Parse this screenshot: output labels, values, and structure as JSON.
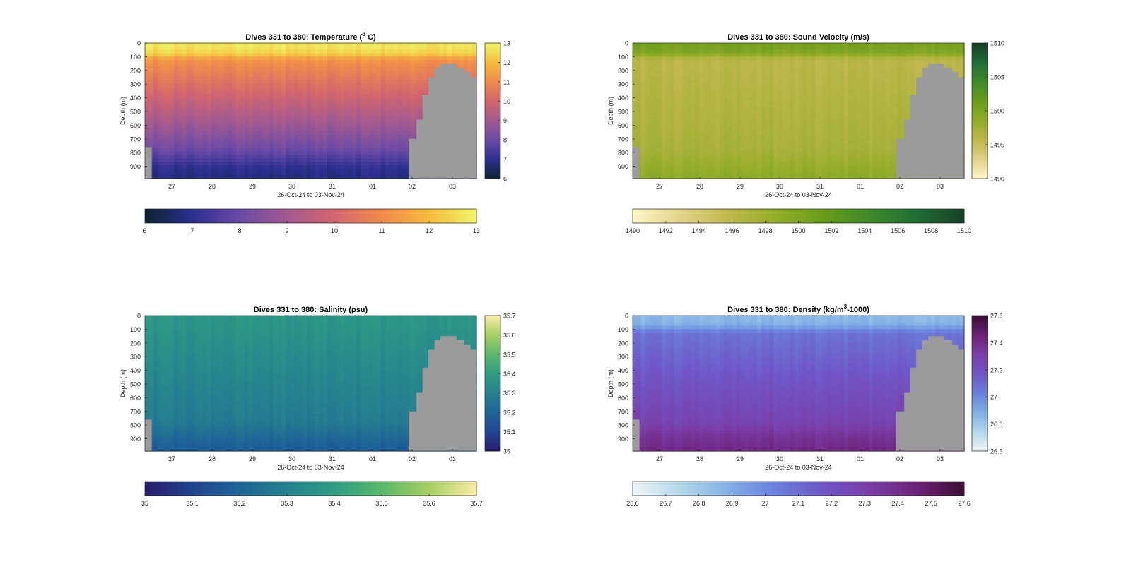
{
  "figure": {
    "background": "#ffffff",
    "mask_color": "#9b9b9b"
  },
  "chart_data": [
    {
      "type": "heatmap",
      "variable": "temperature",
      "title": "Dives 331 to 380: Temperature (",
      "title_sup": "o",
      "title_suffix": " C)",
      "xlabel": "26-Oct-24 to 03-Nov-24",
      "ylabel": "Depth (m)",
      "x_ticks": [
        "27",
        "28",
        "29",
        "30",
        "31",
        "01",
        "02",
        "03"
      ],
      "y_ticks": [
        0,
        100,
        200,
        300,
        400,
        500,
        600,
        700,
        800,
        900
      ],
      "ylim": [
        0,
        990
      ],
      "xlim_days": [
        26.4,
        34.7
      ],
      "colorbar_ticks": [
        "6",
        "7",
        "8",
        "9",
        "10",
        "11",
        "12",
        "13"
      ],
      "clim": [
        6,
        13
      ],
      "colormap": [
        "#0b2330",
        "#2c2f8f",
        "#6a4aa6",
        "#a25a90",
        "#d2666e",
        "#f08a4c",
        "#f6bb3e",
        "#eef56a"
      ],
      "profile": {
        "surface": 12.7,
        "thermocline_depth": 120,
        "top_mixed": 11.2,
        "deep": 7.4,
        "bottom": 6.8
      }
    },
    {
      "type": "heatmap",
      "variable": "sound_velocity",
      "title": "Dives 331 to 380: Sound Velocity (m/s)",
      "title_sup": "",
      "title_suffix": "",
      "xlabel": "26-Oct-24 to 03-Nov-24",
      "ylabel": "Depth (m)",
      "x_ticks": [
        "27",
        "28",
        "29",
        "30",
        "31",
        "01",
        "02",
        "03"
      ],
      "y_ticks": [
        0,
        100,
        200,
        300,
        400,
        500,
        600,
        700,
        800,
        900
      ],
      "ylim": [
        0,
        990
      ],
      "xlim_days": [
        26.4,
        34.7
      ],
      "colorbar_ticks": [
        "1490",
        "1492",
        "1494",
        "1496",
        "1498",
        "1500",
        "1502",
        "1504",
        "1506",
        "1508",
        "1510"
      ],
      "colorbar_ticks_side": [
        "1490",
        "1495",
        "1500",
        "1505",
        "1510"
      ],
      "clim": [
        1490,
        1510
      ],
      "colormap": [
        "#fdf7c6",
        "#e2d38b",
        "#c0b84e",
        "#95ad2a",
        "#6a9c1c",
        "#3f8a2a",
        "#1f6e35",
        "#173f28"
      ],
      "profile": {
        "surface": 1500.5,
        "thermocline_depth": 120,
        "top_mixed": 1496.0,
        "deep": 1497.6,
        "bottom": 1499.0
      }
    },
    {
      "type": "heatmap",
      "variable": "salinity",
      "title": "Dives 331 to 380: Salinity (psu)",
      "title_sup": "",
      "title_suffix": "",
      "xlabel": "26-Oct-24 to 03-Nov-24",
      "ylabel": "Depth (m)",
      "x_ticks": [
        "27",
        "28",
        "29",
        "30",
        "31",
        "01",
        "02",
        "03"
      ],
      "y_ticks": [
        0,
        100,
        200,
        300,
        400,
        500,
        600,
        700,
        800,
        900
      ],
      "ylim": [
        0,
        990
      ],
      "xlim_days": [
        26.4,
        34.7
      ],
      "colorbar_ticks": [
        "35",
        "35.1",
        "35.2",
        "35.3",
        "35.4",
        "35.5",
        "35.6",
        "35.7"
      ],
      "clim": [
        35,
        35.7
      ],
      "colormap": [
        "#2a1a6c",
        "#20448f",
        "#1f6497",
        "#25818f",
        "#2f9d83",
        "#5ab86b",
        "#a6cf62",
        "#f9eda6"
      ],
      "profile": {
        "surface": 35.37,
        "thermocline_depth": 120,
        "top_mixed": 35.36,
        "deep": 35.26,
        "bottom": 35.17
      }
    },
    {
      "type": "heatmap",
      "variable": "density",
      "title": "Dives 331 to 380: Density (kg/m",
      "title_sup": "3",
      "title_suffix": "-1000)",
      "xlabel": "26-Oct-24 to 03-Nov-24",
      "ylabel": "Depth (m)",
      "x_ticks": [
        "27",
        "28",
        "29",
        "30",
        "31",
        "01",
        "02",
        "03"
      ],
      "y_ticks": [
        0,
        100,
        200,
        300,
        400,
        500,
        600,
        700,
        800,
        900
      ],
      "ylim": [
        0,
        990
      ],
      "xlim_days": [
        26.4,
        34.7
      ],
      "colorbar_ticks": [
        "26.6",
        "26.7",
        "26.8",
        "26.9",
        "27",
        "27.1",
        "27.2",
        "27.3",
        "27.4",
        "27.5",
        "27.6"
      ],
      "colorbar_ticks_side": [
        "26.6",
        "26.8",
        "27",
        "27.2",
        "27.4",
        "27.6"
      ],
      "clim": [
        26.6,
        27.6
      ],
      "colormap": [
        "#eef5f7",
        "#b4d8ea",
        "#83b1e6",
        "#6a81dd",
        "#6f56c6",
        "#7a3ea8",
        "#6e2278",
        "#3a0d33"
      ],
      "profile": {
        "surface": 26.86,
        "thermocline_depth": 120,
        "top_mixed": 27.07,
        "deep": 27.32,
        "bottom": 27.42
      }
    }
  ],
  "bathymetry": {
    "left_start_day": 26.4,
    "left_end_day": 26.57,
    "left_depth": 760,
    "ridge": [
      {
        "day": 33.0,
        "depth": 700
      },
      {
        "day": 33.2,
        "depth": 560
      },
      {
        "day": 33.35,
        "depth": 380
      },
      {
        "day": 33.5,
        "depth": 250
      },
      {
        "day": 33.65,
        "depth": 180
      },
      {
        "day": 33.8,
        "depth": 150
      },
      {
        "day": 34.0,
        "depth": 150
      },
      {
        "day": 34.2,
        "depth": 180
      },
      {
        "day": 34.4,
        "depth": 210
      },
      {
        "day": 34.55,
        "depth": 250
      },
      {
        "day": 34.7,
        "depth": 320
      }
    ]
  }
}
